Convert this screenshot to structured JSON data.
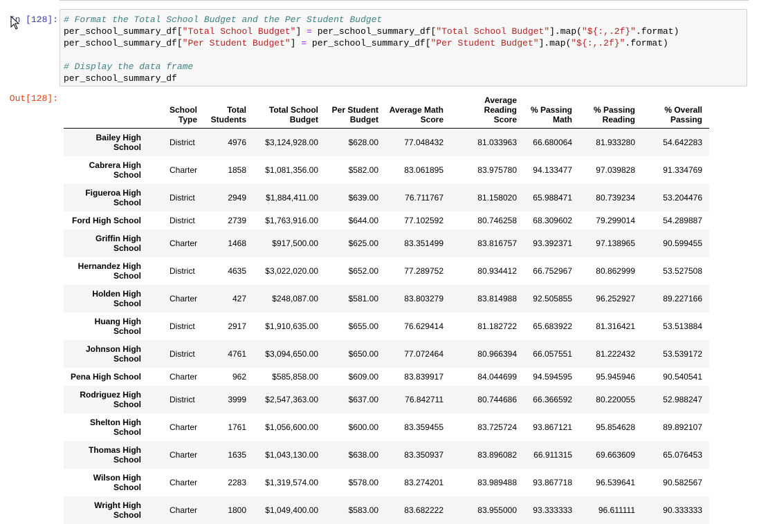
{
  "input": {
    "prompt": "In [128]:",
    "lines": [
      {
        "type": "comment",
        "text": "# Format the Total School Budget and the Per Student Budget"
      },
      {
        "type": "code",
        "a": "per_school_summary_df[",
        "s1": "\"Total School Budget\"",
        "b": "] ",
        "eq": "=",
        "c": " per_school_summary_df[",
        "s2": "\"Total School Budget\"",
        "d": "].map(",
        "s3": "\"${:,.2f}\"",
        "e": ".format)"
      },
      {
        "type": "code",
        "a": "per_school_summary_df[",
        "s1": "\"Per Student Budget\"",
        "b": "] ",
        "eq": "=",
        "c": " per_school_summary_df[",
        "s2": "\"Per Student Budget\"",
        "d": "].map(",
        "s3": "\"${:,.2f}\"",
        "e": ".format)"
      },
      {
        "type": "blank"
      },
      {
        "type": "comment",
        "text": "# Display the data frame"
      },
      {
        "type": "plain",
        "text": "per_school_summary_df"
      }
    ]
  },
  "output": {
    "prompt": "Out[128]:",
    "columns": [
      [
        "School",
        "Type"
      ],
      [
        "Total",
        "Students"
      ],
      [
        "Total School",
        "Budget"
      ],
      [
        "Per Student",
        "Budget"
      ],
      [
        "Average Math",
        "Score"
      ],
      [
        "Average Reading",
        "Score"
      ],
      [
        "% Passing",
        "Math"
      ],
      [
        "% Passing",
        "Reading"
      ],
      [
        "% Overall",
        "Passing"
      ]
    ],
    "rows": [
      {
        "name": [
          "Bailey High",
          "School"
        ],
        "cells": [
          "District",
          "4976",
          "$3,124,928.00",
          "$628.00",
          "77.048432",
          "81.033963",
          "66.680064",
          "81.933280",
          "54.642283"
        ]
      },
      {
        "name": [
          "Cabrera High",
          "School"
        ],
        "cells": [
          "Charter",
          "1858",
          "$1,081,356.00",
          "$582.00",
          "83.061895",
          "83.975780",
          "94.133477",
          "97.039828",
          "91.334769"
        ]
      },
      {
        "name": [
          "Figueroa High",
          "School"
        ],
        "cells": [
          "District",
          "2949",
          "$1,884,411.00",
          "$639.00",
          "76.711767",
          "81.158020",
          "65.988471",
          "80.739234",
          "53.204476"
        ]
      },
      {
        "name": [
          "Ford High School"
        ],
        "cells": [
          "District",
          "2739",
          "$1,763,916.00",
          "$644.00",
          "77.102592",
          "80.746258",
          "68.309602",
          "79.299014",
          "54.289887"
        ]
      },
      {
        "name": [
          "Griffin High",
          "School"
        ],
        "cells": [
          "Charter",
          "1468",
          "$917,500.00",
          "$625.00",
          "83.351499",
          "83.816757",
          "93.392371",
          "97.138965",
          "90.599455"
        ]
      },
      {
        "name": [
          "Hernandez High",
          "School"
        ],
        "cells": [
          "District",
          "4635",
          "$3,022,020.00",
          "$652.00",
          "77.289752",
          "80.934412",
          "66.752967",
          "80.862999",
          "53.527508"
        ]
      },
      {
        "name": [
          "Holden High",
          "School"
        ],
        "cells": [
          "Charter",
          "427",
          "$248,087.00",
          "$581.00",
          "83.803279",
          "83.814988",
          "92.505855",
          "96.252927",
          "89.227166"
        ]
      },
      {
        "name": [
          "Huang High",
          "School"
        ],
        "cells": [
          "District",
          "2917",
          "$1,910,635.00",
          "$655.00",
          "76.629414",
          "81.182722",
          "65.683922",
          "81.316421",
          "53.513884"
        ]
      },
      {
        "name": [
          "Johnson High",
          "School"
        ],
        "cells": [
          "District",
          "4761",
          "$3,094,650.00",
          "$650.00",
          "77.072464",
          "80.966394",
          "66.057551",
          "81.222432",
          "53.539172"
        ]
      },
      {
        "name": [
          "Pena High School"
        ],
        "cells": [
          "Charter",
          "962",
          "$585,858.00",
          "$609.00",
          "83.839917",
          "84.044699",
          "94.594595",
          "95.945946",
          "90.540541"
        ]
      },
      {
        "name": [
          "Rodriguez High",
          "School"
        ],
        "cells": [
          "District",
          "3999",
          "$2,547,363.00",
          "$637.00",
          "76.842711",
          "80.744686",
          "66.366592",
          "80.220055",
          "52.988247"
        ]
      },
      {
        "name": [
          "Shelton High",
          "School"
        ],
        "cells": [
          "Charter",
          "1761",
          "$1,056,600.00",
          "$600.00",
          "83.359455",
          "83.725724",
          "93.867121",
          "95.854628",
          "89.892107"
        ]
      },
      {
        "name": [
          "Thomas High",
          "School"
        ],
        "cells": [
          "Charter",
          "1635",
          "$1,043,130.00",
          "$638.00",
          "83.350937",
          "83.896082",
          "66.911315",
          "69.663609",
          "65.076453"
        ]
      },
      {
        "name": [
          "Wilson High",
          "School"
        ],
        "cells": [
          "Charter",
          "2283",
          "$1,319,574.00",
          "$578.00",
          "83.274201",
          "83.989488",
          "93.867718",
          "96.539641",
          "90.582567"
        ]
      },
      {
        "name": [
          "Wright High",
          "School"
        ],
        "cells": [
          "Charter",
          "1800",
          "$1,049,400.00",
          "$583.00",
          "83.682222",
          "83.955000",
          "93.333333",
          "96.611111",
          "90.333333"
        ]
      }
    ]
  }
}
